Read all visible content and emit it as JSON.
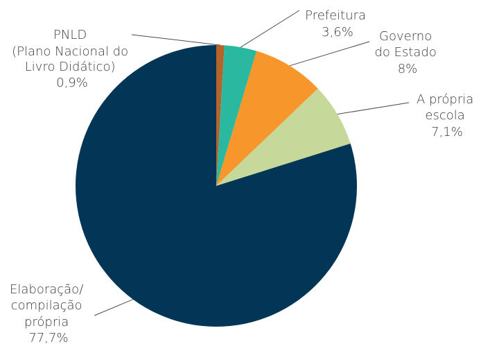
{
  "chart_data": {
    "type": "pie",
    "title": "",
    "slices": [
      {
        "label_lines": [
          "PNLD",
          "(Plano Nacional do",
          "Livro Didático)"
        ],
        "value_label": "0,9%",
        "value": 0.9,
        "color": "#b5652c"
      },
      {
        "label_lines": [
          "Prefeitura"
        ],
        "value_label": "3,6%",
        "value": 3.6,
        "color": "#2ab8a0"
      },
      {
        "label_lines": [
          "Governo",
          "do Estado"
        ],
        "value_label": "8%",
        "value": 8.0,
        "color": "#f7962a"
      },
      {
        "label_lines": [
          "A própria",
          "escola"
        ],
        "value_label": "7,1%",
        "value": 7.1,
        "color": "#c6d89a"
      },
      {
        "label_lines": [
          "Elaboração/",
          "compilação",
          "própria"
        ],
        "value_label": "77,7%",
        "value": 77.7,
        "color": "#033656"
      }
    ]
  }
}
